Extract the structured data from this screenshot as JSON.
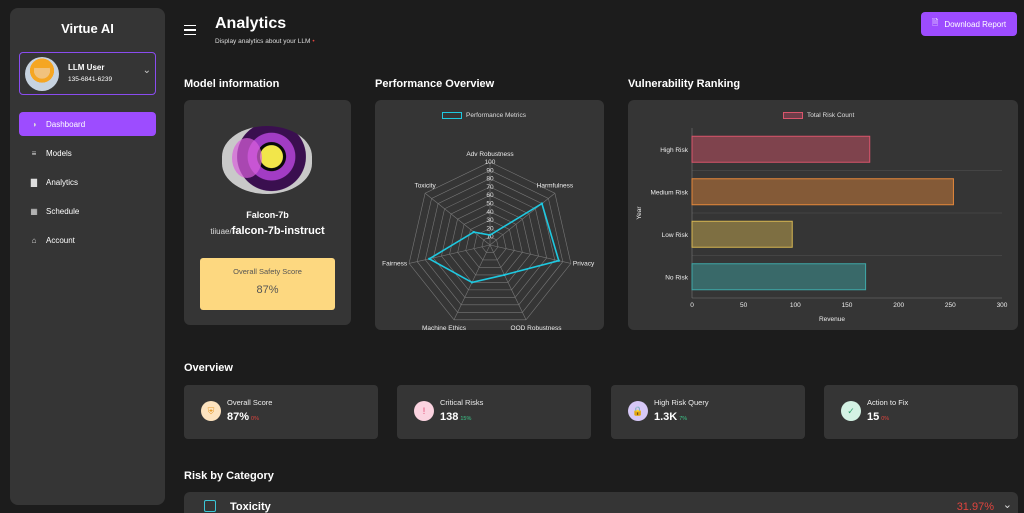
{
  "sidebar": {
    "brand": "Virtue AI",
    "user": {
      "name": "LLM User",
      "phone": "135-6841-6239"
    },
    "items": [
      {
        "label": "Dashboard",
        "icon": "pie-chart-icon",
        "active": true
      },
      {
        "label": "Models",
        "icon": "stack-icon",
        "active": false
      },
      {
        "label": "Analytics",
        "icon": "bar-chart-icon",
        "active": false
      },
      {
        "label": "Schedule",
        "icon": "calendar-icon",
        "active": false
      },
      {
        "label": "Account",
        "icon": "user-icon",
        "active": false
      }
    ]
  },
  "header": {
    "title": "Analytics",
    "subtitle": "Display analytics about your LLM",
    "download_label": "Download Report"
  },
  "sections": {
    "model_info": "Model information",
    "performance": "Performance Overview",
    "vulnerability": "Vulnerability Ranking",
    "overview": "Overview",
    "risk_by_category": "Risk by Category"
  },
  "model": {
    "name": "Falcon-7b",
    "namespace": "tiiuae/",
    "id": "falcon-7b-instruct",
    "safety_label": "Overall Safety Score",
    "safety_value": "87%"
  },
  "chart_data": [
    {
      "type": "radar",
      "legend": "Performance Metrics",
      "axes": [
        "Adv Robustness",
        "Harmfulness",
        "Privacy",
        "OOD Robustness",
        "Machine Ethics",
        "Fairness",
        "Toxicity"
      ],
      "ticks": [
        "10",
        "20",
        "30",
        "40",
        "50",
        "60",
        "70",
        "80",
        "90",
        "100"
      ],
      "range": [
        0,
        100
      ],
      "values": [
        12,
        80,
        85,
        40,
        50,
        75,
        25
      ],
      "color": "#1ec8e0"
    },
    {
      "type": "bar",
      "orientation": "horizontal",
      "legend": "Total Risk Count",
      "categories": [
        "High Risk",
        "Medium Risk",
        "Low Risk",
        "No Risk"
      ],
      "values": [
        172,
        253,
        97,
        168
      ],
      "colors": [
        "#d9556b",
        "#e5873a",
        "#d6b652",
        "#3fa8a8"
      ],
      "xlabel": "Revenue",
      "ylabel": "Year",
      "xlim": [
        0,
        300
      ],
      "xticks": [
        "0",
        "50",
        "100",
        "150",
        "200",
        "250",
        "300"
      ]
    }
  ],
  "overview_cards": [
    {
      "label": "Overall Score",
      "value": "87%",
      "delta": "0%",
      "delta_color": "#e0443e",
      "icon": "shield-icon",
      "icon_bg": "#fde3bf",
      "icon_color": "#e59a2a"
    },
    {
      "label": "Critical Risks",
      "value": "138",
      "delta": "15%",
      "delta_color": "#3cc88a",
      "icon": "exclamation-icon",
      "icon_bg": "#fbd3e0",
      "icon_color": "#e0446e"
    },
    {
      "label": "High Risk Query",
      "value": "1.3K",
      "delta": "7%",
      "delta_color": "#3cc88a",
      "icon": "lock-icon",
      "icon_bg": "#d6c8f7",
      "icon_color": "#7a4ce0"
    },
    {
      "label": "Action to Fix",
      "value": "15",
      "delta": "0%",
      "delta_color": "#e0443e",
      "icon": "users-check-icon",
      "icon_bg": "#d4f2e4",
      "icon_color": "#2f9e6c"
    }
  ],
  "risk_category": {
    "name": "Toxicity",
    "percent": "31.97%"
  }
}
